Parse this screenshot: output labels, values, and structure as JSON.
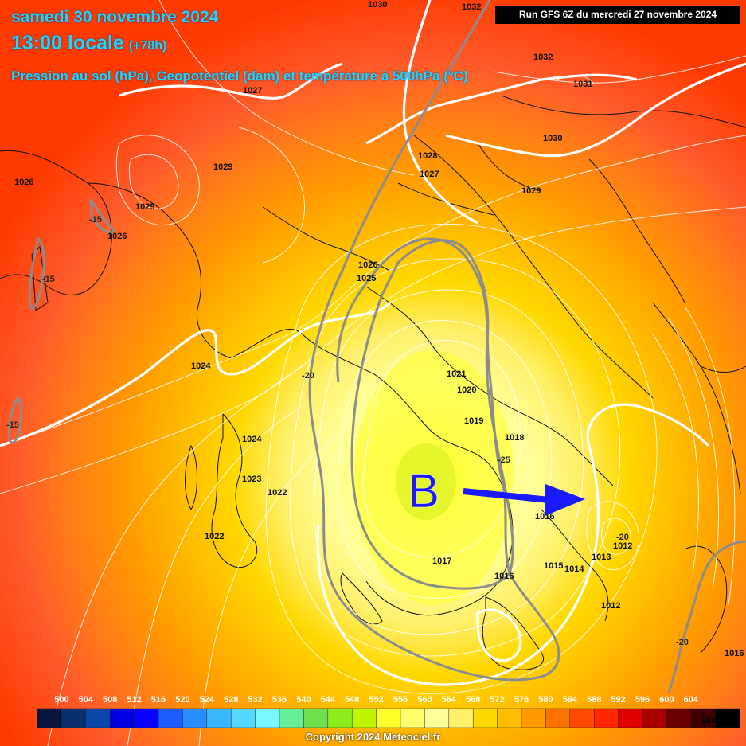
{
  "header": {
    "title_date": "samedi 30 novembre 2024",
    "title_time": "13:00 locale",
    "title_lead": "(+78h)",
    "subtitle": "Pression au sol (hPa), Geopotentiel (dam) et température à 500hPa (°C)",
    "run_info": "Run GFS 6Z du mercredi 27 novembre 2024"
  },
  "low_marker": {
    "letter": "B",
    "color": "#1a1aff"
  },
  "pressure_labels": [
    "1030",
    "1032",
    "1032",
    "1031",
    "1030",
    "1029",
    "1028",
    "1027",
    "1027",
    "1029",
    "1029",
    "1026",
    "1026",
    "1026",
    "1025",
    "1024",
    "1024",
    "1023",
    "1022",
    "1022",
    "1021",
    "1020",
    "1019",
    "1018",
    "1017",
    "1016",
    "1016",
    "1015",
    "1014",
    "1013",
    "1012",
    "1012",
    "1016"
  ],
  "temperature_labels": [
    "-15",
    "-15",
    "-15",
    "-20",
    "-25",
    "-20",
    "-20"
  ],
  "scale": {
    "unit": "(dam)",
    "values": [
      "500",
      "504",
      "508",
      "512",
      "516",
      "520",
      "524",
      "528",
      "532",
      "536",
      "540",
      "544",
      "548",
      "552",
      "556",
      "560",
      "564",
      "568",
      "572",
      "576",
      "580",
      "584",
      "588",
      "592",
      "596",
      "600",
      "604"
    ],
    "colors": [
      "#071540",
      "#0a2f6e",
      "#0b46a8",
      "#0000e0",
      "#0a00ff",
      "#1e5bff",
      "#2a8dff",
      "#39b7ff",
      "#56d9ff",
      "#7af7ff",
      "#66ee99",
      "#6ee050",
      "#8ced1a",
      "#c0f500",
      "#ffff2a",
      "#ffff6e",
      "#ffff9a",
      "#fff06a",
      "#ffd800",
      "#ffbd00",
      "#ff9a00",
      "#ff7200",
      "#ff4a00",
      "#ff2600",
      "#e00000",
      "#a80000",
      "#6a0000",
      "#400000",
      "#000000"
    ]
  },
  "copyright": "Copyright 2024 Meteociel.fr"
}
